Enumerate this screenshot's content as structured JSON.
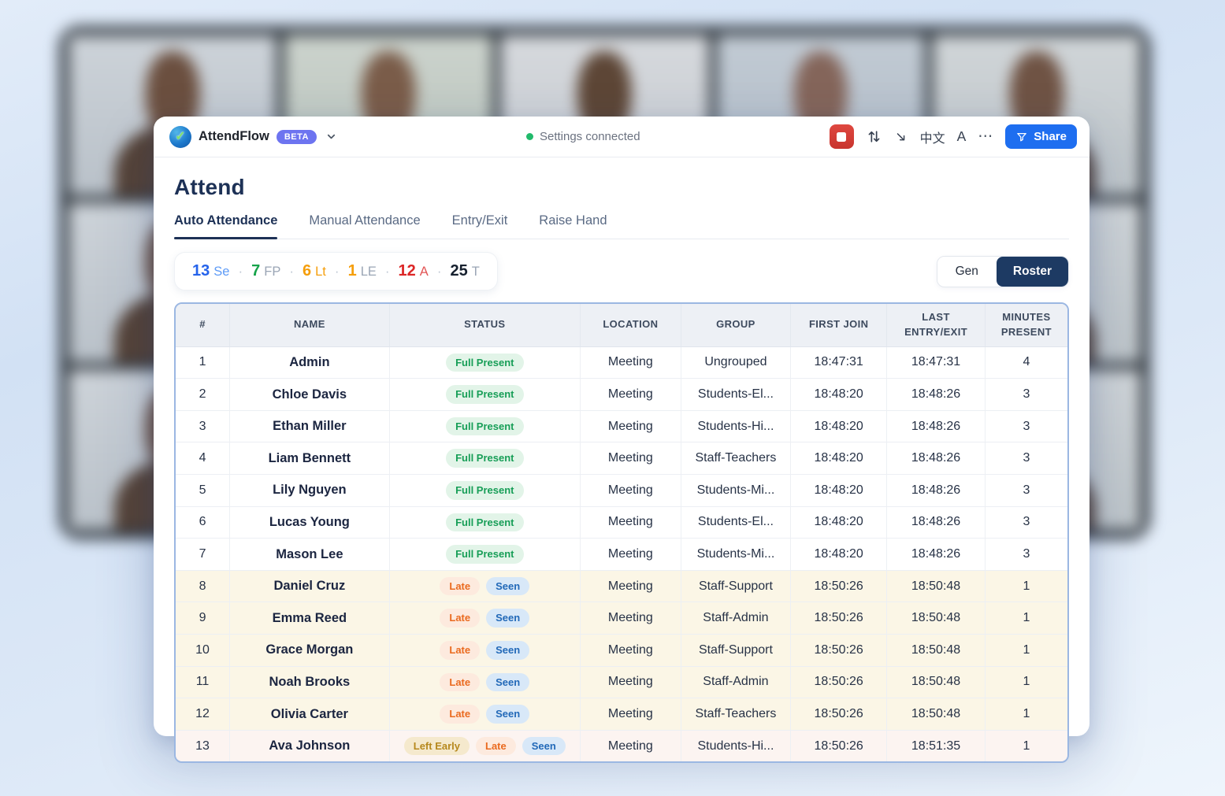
{
  "colors": {
    "accent_blue": "#1e6ef0",
    "navy": "#1d3156",
    "record_red": "#d33a33",
    "beta_purple": "#6d74f0",
    "status_green": "#21ba6b",
    "table_border_blue": "#9bb7e2",
    "badge_full_present_fg": "#179e57",
    "badge_late_fg": "#ea6a1f",
    "badge_seen_fg": "#2269b8",
    "badge_left_early_fg": "#b6881d"
  },
  "header": {
    "app_name": "AttendFlow",
    "beta_badge": "BETA",
    "status_text": "Settings connected",
    "language_label": "中文",
    "font_size_label": "A",
    "more_label": "⋯",
    "share_label": "Share"
  },
  "page": {
    "title": "Attend",
    "tabs": [
      {
        "label": "Auto Attendance",
        "active": true
      },
      {
        "label": "Manual Attendance",
        "active": false
      },
      {
        "label": "Entry/Exit",
        "active": false
      },
      {
        "label": "Raise Hand",
        "active": false
      }
    ]
  },
  "stats": [
    {
      "value": "13",
      "label": "Se",
      "value_color": "#2563eb",
      "label_color": "#5e9bf7"
    },
    {
      "value": "7",
      "label": "FP",
      "value_color": "#16a34a",
      "label_color": "#9aa5b5"
    },
    {
      "value": "6",
      "label": "Lt",
      "value_color": "#f59e0b",
      "label_color": "#f59e0b"
    },
    {
      "value": "1",
      "label": "LE",
      "value_color": "#f59e0b",
      "label_color": "#9aa5b5"
    },
    {
      "value": "12",
      "label": "A",
      "value_color": "#dc2626",
      "label_color": "#e25555"
    },
    {
      "value": "25",
      "label": "T",
      "value_color": "#16202e",
      "label_color": "#9aa5b5"
    }
  ],
  "view_toggle": {
    "options": [
      {
        "label": "Gen",
        "active": false
      },
      {
        "label": "Roster",
        "active": true
      }
    ]
  },
  "table": {
    "columns": [
      "#",
      "NAME",
      "STATUS",
      "LOCATION",
      "GROUP",
      "FIRST JOIN",
      "LAST ENTRY/EXIT",
      "MINUTES PRESENT"
    ],
    "rows": [
      {
        "num": "1",
        "name": "Admin",
        "badges": [
          {
            "label": "Full Present",
            "type": "full_present"
          }
        ],
        "location": "Meeting",
        "group": "Ungrouped",
        "first_join": "18:47:31",
        "last_entry_exit": "18:47:31",
        "minutes": "4",
        "row_type": "present"
      },
      {
        "num": "2",
        "name": "Chloe Davis",
        "badges": [
          {
            "label": "Full Present",
            "type": "full_present"
          }
        ],
        "location": "Meeting",
        "group": "Students-El...",
        "first_join": "18:48:20",
        "last_entry_exit": "18:48:26",
        "minutes": "3",
        "row_type": "present"
      },
      {
        "num": "3",
        "name": "Ethan Miller",
        "badges": [
          {
            "label": "Full Present",
            "type": "full_present"
          }
        ],
        "location": "Meeting",
        "group": "Students-Hi...",
        "first_join": "18:48:20",
        "last_entry_exit": "18:48:26",
        "minutes": "3",
        "row_type": "present"
      },
      {
        "num": "4",
        "name": "Liam Bennett",
        "badges": [
          {
            "label": "Full Present",
            "type": "full_present"
          }
        ],
        "location": "Meeting",
        "group": "Staff-Teachers",
        "first_join": "18:48:20",
        "last_entry_exit": "18:48:26",
        "minutes": "3",
        "row_type": "present"
      },
      {
        "num": "5",
        "name": "Lily Nguyen",
        "badges": [
          {
            "label": "Full Present",
            "type": "full_present"
          }
        ],
        "location": "Meeting",
        "group": "Students-Mi...",
        "first_join": "18:48:20",
        "last_entry_exit": "18:48:26",
        "minutes": "3",
        "row_type": "present"
      },
      {
        "num": "6",
        "name": "Lucas Young",
        "badges": [
          {
            "label": "Full Present",
            "type": "full_present"
          }
        ],
        "location": "Meeting",
        "group": "Students-El...",
        "first_join": "18:48:20",
        "last_entry_exit": "18:48:26",
        "minutes": "3",
        "row_type": "present"
      },
      {
        "num": "7",
        "name": "Mason Lee",
        "badges": [
          {
            "label": "Full Present",
            "type": "full_present"
          }
        ],
        "location": "Meeting",
        "group": "Students-Mi...",
        "first_join": "18:48:20",
        "last_entry_exit": "18:48:26",
        "minutes": "3",
        "row_type": "present"
      },
      {
        "num": "8",
        "name": "Daniel Cruz",
        "badges": [
          {
            "label": "Late",
            "type": "late"
          },
          {
            "label": "Seen",
            "type": "seen"
          }
        ],
        "location": "Meeting",
        "group": "Staff-Support",
        "first_join": "18:50:26",
        "last_entry_exit": "18:50:48",
        "minutes": "1",
        "row_type": "late"
      },
      {
        "num": "9",
        "name": "Emma Reed",
        "badges": [
          {
            "label": "Late",
            "type": "late"
          },
          {
            "label": "Seen",
            "type": "seen"
          }
        ],
        "location": "Meeting",
        "group": "Staff-Admin",
        "first_join": "18:50:26",
        "last_entry_exit": "18:50:48",
        "minutes": "1",
        "row_type": "late"
      },
      {
        "num": "10",
        "name": "Grace Morgan",
        "badges": [
          {
            "label": "Late",
            "type": "late"
          },
          {
            "label": "Seen",
            "type": "seen"
          }
        ],
        "location": "Meeting",
        "group": "Staff-Support",
        "first_join": "18:50:26",
        "last_entry_exit": "18:50:48",
        "minutes": "1",
        "row_type": "late"
      },
      {
        "num": "11",
        "name": "Noah Brooks",
        "badges": [
          {
            "label": "Late",
            "type": "late"
          },
          {
            "label": "Seen",
            "type": "seen"
          }
        ],
        "location": "Meeting",
        "group": "Staff-Admin",
        "first_join": "18:50:26",
        "last_entry_exit": "18:50:48",
        "minutes": "1",
        "row_type": "late"
      },
      {
        "num": "12",
        "name": "Olivia Carter",
        "badges": [
          {
            "label": "Late",
            "type": "late"
          },
          {
            "label": "Seen",
            "type": "seen"
          }
        ],
        "location": "Meeting",
        "group": "Staff-Teachers",
        "first_join": "18:50:26",
        "last_entry_exit": "18:50:48",
        "minutes": "1",
        "row_type": "late"
      },
      {
        "num": "13",
        "name": "Ava Johnson",
        "badges": [
          {
            "label": "Left Early",
            "type": "left_early"
          },
          {
            "label": "Late",
            "type": "late"
          },
          {
            "label": "Seen",
            "type": "seen"
          }
        ],
        "location": "Meeting",
        "group": "Students-Hi...",
        "first_join": "18:50:26",
        "last_entry_exit": "18:51:35",
        "minutes": "1",
        "row_type": "left_early"
      }
    ]
  }
}
